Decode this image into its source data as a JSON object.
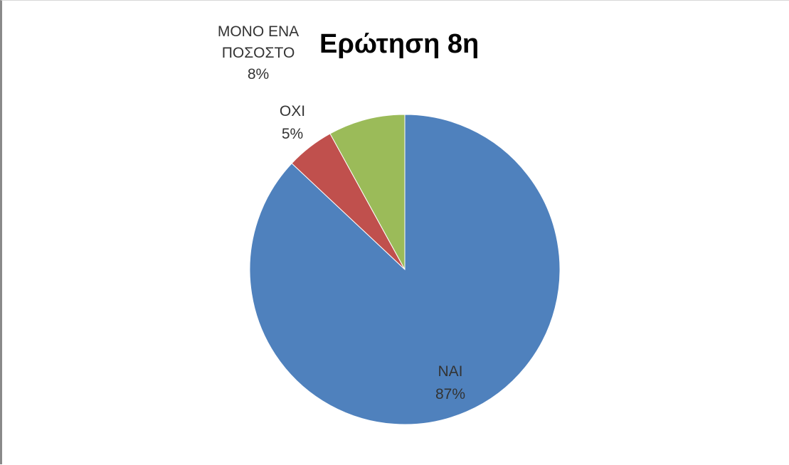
{
  "chart_data": {
    "type": "pie",
    "title": "Ερώτηση 8η",
    "slices": [
      {
        "name": "ΝΑΙ",
        "value": 87,
        "label": "87%",
        "color": "#4f81bd"
      },
      {
        "name": "ΟΧΙ",
        "value": 5,
        "label": "5%",
        "color": "#c0504d"
      },
      {
        "name": "ΜΟΝΟ ΕΝΑ ΠΟΣΟΣΤΟ",
        "value": 8,
        "label": "8%",
        "color": "#9bbb59"
      }
    ],
    "start": "12 o'clock",
    "direction": "clockwise"
  }
}
